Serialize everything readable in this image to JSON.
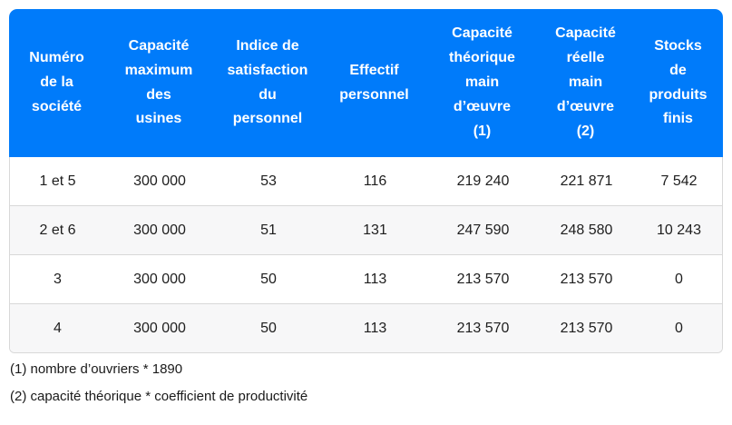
{
  "colors": {
    "header_bg": "#007bfa",
    "header_text": "#ffffff",
    "body_text": "#1e1e1e",
    "row_stripe": "#f7f7f8",
    "border": "#d8d8d8",
    "footnote_text": "#1a1a1a"
  },
  "chart_data": {
    "type": "table",
    "columns": [
      "Numéro de la société",
      "Capacité maximum des usines",
      "Indice de satisfaction du personnel",
      "Effectif personnel",
      "Capacité théorique main d’œuvre (1)",
      "Capacité réelle main d’œuvre (2)",
      "Stocks de produits finis"
    ],
    "header_display_labels": [
      "Numéro\nde la\nsociété",
      "Capacité\nmaximum\ndes\nusines",
      "Indice de\nsatisfaction\ndu\npersonnel",
      "Effectif\npersonnel",
      "Capacité\nthéorique\nmain\nd’œuvre\n(1)",
      "Capacité\nréelle\nmain\nd’œuvre\n(2)",
      "Stocks\nde\nproduits\nfinis"
    ],
    "rows": [
      [
        "1 et 5",
        "300 000",
        "53",
        "116",
        "219 240",
        "221 871",
        "7 542"
      ],
      [
        "2 et 6",
        "300 000",
        "51",
        "131",
        "247 590",
        "248 580",
        "10 243"
      ],
      [
        "3",
        "300 000",
        "50",
        "113",
        "213 570",
        "213 570",
        "0"
      ],
      [
        "4",
        "300 000",
        "50",
        "113",
        "213 570",
        "213 570",
        "0"
      ]
    ]
  },
  "footnotes": [
    "(1) nombre d’ouvriers * 1890",
    "(2) capacité théorique * coefficient de productivité"
  ]
}
